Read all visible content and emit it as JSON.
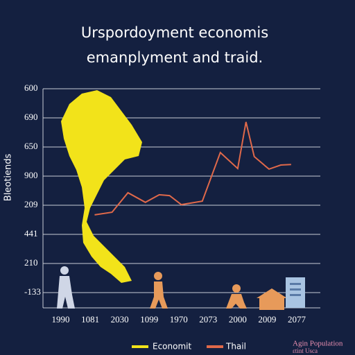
{
  "chart_data": {
    "type": "line",
    "title_lines": [
      "Urspordoyment economis",
      "emanplyment and traid."
    ],
    "y_axis_label": "Bleotiends",
    "y_axis_labels": [
      "600",
      "690",
      "650",
      "900",
      "209",
      "441",
      "210",
      "-133"
    ],
    "categories": [
      "1990",
      "1081",
      "2030",
      "1099",
      "1970",
      "2073",
      "2000",
      "2009",
      "2077"
    ],
    "xlim": [
      -0.6,
      8.8
    ],
    "ylim": [
      0,
      7
    ],
    "grid": true,
    "series": [
      {
        "color": "#e0694a",
        "x": [
          1.15,
          1.74,
          2.28,
          2.87,
          3.34,
          3.69,
          4.09,
          4.8,
          5.41,
          6.0,
          6.28,
          6.56,
          7.06,
          7.46,
          7.81
        ],
        "values": [
          2.67,
          2.76,
          3.43,
          3.1,
          3.36,
          3.33,
          3.02,
          3.14,
          4.81,
          4.26,
          5.86,
          4.67,
          4.24,
          4.38,
          4.4
        ]
      }
    ],
    "legend": [
      {
        "name": "Economit",
        "color": "#f2e31a"
      },
      {
        "name": "Thail",
        "color": "#e0694a"
      }
    ],
    "corner_note": [
      "Agin Population",
      "ɛtint Usca"
    ]
  }
}
